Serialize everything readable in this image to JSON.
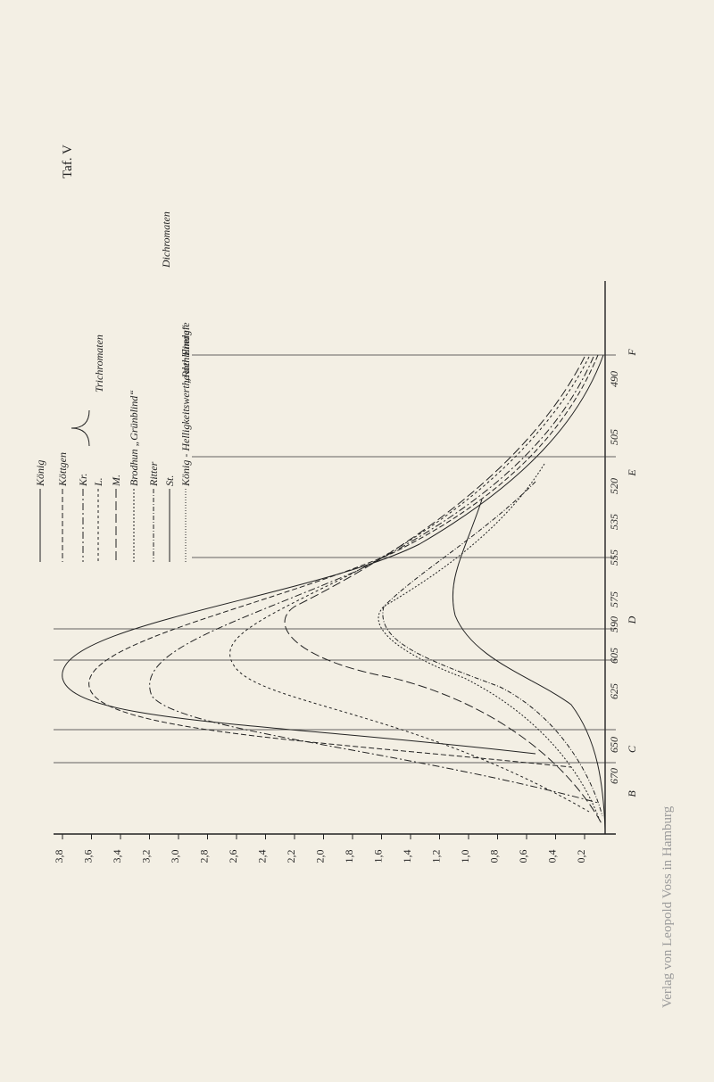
{
  "plate_label": "Taf. V",
  "legend": {
    "entries": [
      "König",
      "Köttgen",
      "Kr.",
      "L.",
      "M.",
      "Brodhun „Grünblind“",
      "Ritter",
      "St.",
      "König - Helligkeitswerthe der Energie"
    ],
    "groups": [
      "Trichromaten",
      "Dichromaten",
      "„Rothblinde“"
    ]
  },
  "x_axis_labels": [
    "3,8",
    "3,6",
    "3,4",
    "3,2",
    "3,0",
    "2,8",
    "2,6",
    "2,4",
    "2,2",
    "2,0",
    "1,8",
    "1,6",
    "1,4",
    "1,2",
    "1,0",
    "0,8",
    "0,6",
    "0,4",
    "0,2"
  ],
  "wavelengths": [
    "670",
    "650",
    "625",
    "605",
    "590",
    "575",
    "555",
    "535",
    "520",
    "505",
    "490"
  ],
  "fraunhofer_lines": [
    "B",
    "C",
    "D",
    "E",
    "F"
  ],
  "publisher": "Verlag von Leopold Voss in Hamburg"
}
